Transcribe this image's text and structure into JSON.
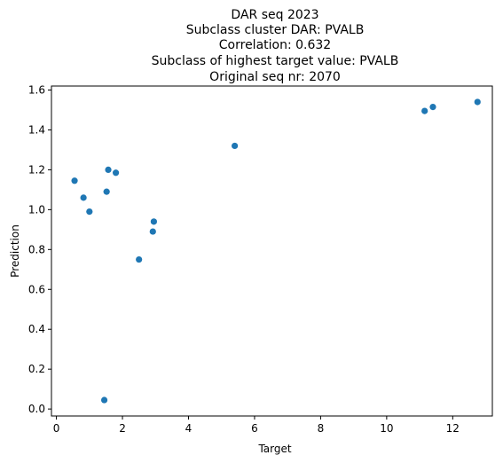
{
  "chart_data": {
    "type": "scatter",
    "title_lines": [
      "DAR seq 2023",
      "Subclass cluster DAR: PVALB",
      "Correlation: 0.632",
      "Subclass of highest target value: PVALB",
      "Original seq nr: 2070"
    ],
    "xlabel": "Target",
    "ylabel": "Prediction",
    "xlim": [
      -0.15,
      13.2
    ],
    "ylim": [
      -0.035,
      1.62
    ],
    "xticks": [
      0,
      2,
      4,
      6,
      8,
      10,
      12
    ],
    "xtick_labels": [
      "0",
      "2",
      "4",
      "6",
      "8",
      "10",
      "12"
    ],
    "yticks": [
      0.0,
      0.2,
      0.4,
      0.6,
      0.8,
      1.0,
      1.2,
      1.4,
      1.6
    ],
    "ytick_labels": [
      "0.0",
      "0.2",
      "0.4",
      "0.6",
      "0.8",
      "1.0",
      "1.2",
      "1.4",
      "1.6"
    ],
    "grid": false,
    "marker_color": "#1f77b4",
    "points": [
      {
        "x": 0.55,
        "y": 1.145
      },
      {
        "x": 0.82,
        "y": 1.06
      },
      {
        "x": 1.0,
        "y": 0.99
      },
      {
        "x": 1.45,
        "y": 0.045
      },
      {
        "x": 1.52,
        "y": 1.09
      },
      {
        "x": 1.57,
        "y": 1.2
      },
      {
        "x": 1.8,
        "y": 1.185
      },
      {
        "x": 2.5,
        "y": 0.75
      },
      {
        "x": 2.92,
        "y": 0.89
      },
      {
        "x": 2.95,
        "y": 0.94
      },
      {
        "x": 5.4,
        "y": 1.32
      },
      {
        "x": 11.15,
        "y": 1.495
      },
      {
        "x": 11.4,
        "y": 1.515
      },
      {
        "x": 12.75,
        "y": 1.54
      }
    ]
  }
}
